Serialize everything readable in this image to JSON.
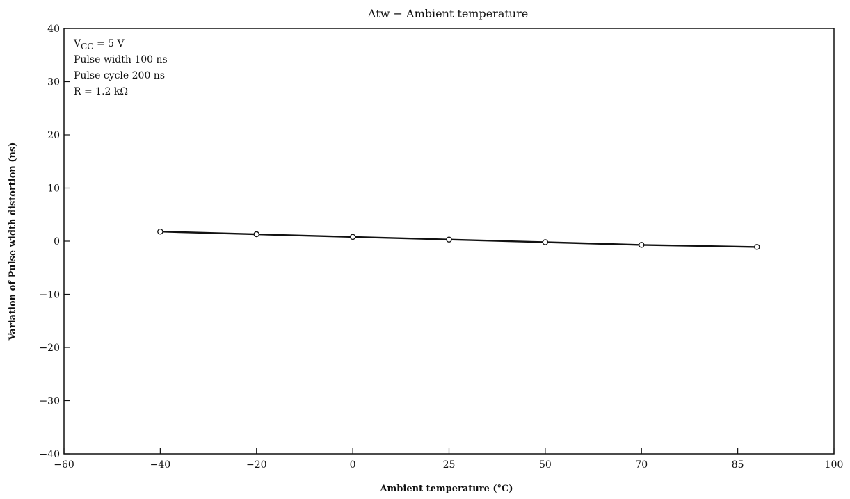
{
  "chart_data": {
    "type": "line",
    "title": "Δtw − Ambient temperature",
    "xlabel": "Ambient temperature (°C)",
    "ylabel": "Variation of Pulse width distortion (ns)",
    "x_ticks": [
      -60,
      -40,
      -20,
      0,
      25,
      50,
      70,
      85,
      100
    ],
    "y_ticks": [
      -40,
      -30,
      -20,
      -10,
      0,
      10,
      20,
      30,
      40
    ],
    "ylim": [
      -40,
      40
    ],
    "grid": false,
    "annotations": [
      {
        "main": "V",
        "sub": "CC",
        "rest": " = 5 V"
      },
      {
        "main": "Pulse width 100 ns",
        "sub": "",
        "rest": ""
      },
      {
        "main": "Pulse cycle 200 ns",
        "sub": "",
        "rest": ""
      },
      {
        "main": "R = 1.2 kΩ",
        "sub": "",
        "rest": ""
      }
    ],
    "series": [
      {
        "x": [
          -40,
          -20,
          0,
          25,
          50,
          70,
          88
        ],
        "values": [
          1.8,
          1.3,
          0.8,
          0.3,
          -0.2,
          -0.7,
          -1.1
        ]
      }
    ],
    "colors": {
      "line": "#111111",
      "marker_fill": "#ffffff",
      "frame": "#111111"
    }
  }
}
